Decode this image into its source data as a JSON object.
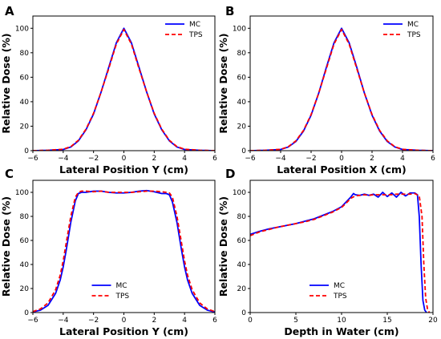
{
  "chart_data": [
    {
      "type": "line",
      "panel_label": "A",
      "xlabel": "Lateral Position Y (cm)",
      "ylabel": "Relative Dose (%)",
      "xlim": [
        -6,
        6
      ],
      "ylim": [
        0,
        110
      ],
      "xticks": [
        -6,
        -4,
        -2,
        0,
        2,
        4,
        6
      ],
      "yticks": [
        0,
        20,
        40,
        60,
        80,
        100
      ],
      "legend_position": "top-right",
      "series": [
        {
          "name": "MC",
          "color": "#0000ff",
          "dash": "solid",
          "x": [
            -6,
            -5,
            -4,
            -3.5,
            -3,
            -2.5,
            -2,
            -1.5,
            -1,
            -0.5,
            0,
            0.5,
            1,
            1.5,
            2,
            2.5,
            3,
            3.5,
            4,
            5,
            6
          ],
          "y": [
            0,
            0.3,
            1,
            3,
            8,
            17,
            30,
            48,
            68,
            88,
            100,
            88,
            68,
            48,
            30,
            17,
            8,
            3,
            1,
            0.3,
            0
          ]
        },
        {
          "name": "TPS",
          "color": "#ff0000",
          "dash": "dashed",
          "x": [
            -6,
            -5,
            -4,
            -3.5,
            -3,
            -2.5,
            -2,
            -1.5,
            -1,
            -0.5,
            0,
            0.5,
            1,
            1.5,
            2,
            2.5,
            3,
            3.5,
            4,
            5,
            6
          ],
          "y": [
            0,
            0.3,
            1.2,
            3.3,
            8.5,
            17.5,
            30.5,
            48,
            67,
            87,
            99,
            87,
            67,
            48,
            30.5,
            17.5,
            8.5,
            3.3,
            1.2,
            0.3,
            0
          ]
        }
      ]
    },
    {
      "type": "line",
      "panel_label": "B",
      "xlabel": "Lateral Position X (cm)",
      "ylabel": "Relative Dose (%)",
      "xlim": [
        -6,
        6
      ],
      "ylim": [
        0,
        110
      ],
      "xticks": [
        -6,
        -4,
        -2,
        0,
        2,
        4,
        6
      ],
      "yticks": [
        0,
        20,
        40,
        60,
        80,
        100
      ],
      "legend_position": "top-right",
      "series": [
        {
          "name": "MC",
          "color": "#0000ff",
          "dash": "solid",
          "x": [
            -6,
            -5,
            -4,
            -3.5,
            -3,
            -2.5,
            -2,
            -1.5,
            -1,
            -0.5,
            0,
            0.5,
            1,
            1.5,
            2,
            2.5,
            3,
            3.5,
            4,
            5,
            6
          ],
          "y": [
            0,
            0.3,
            1,
            3,
            7.5,
            16,
            29,
            47,
            68,
            88,
            100,
            88,
            68,
            47,
            29,
            16,
            7.5,
            3,
            1,
            0.3,
            0
          ]
        },
        {
          "name": "TPS",
          "color": "#ff0000",
          "dash": "dashed",
          "x": [
            -6,
            -5,
            -4,
            -3.5,
            -3,
            -2.5,
            -2,
            -1.5,
            -1,
            -0.5,
            0,
            0.5,
            1,
            1.5,
            2,
            2.5,
            3,
            3.5,
            4,
            5,
            6
          ],
          "y": [
            0,
            0.3,
            1.1,
            3.2,
            8,
            16.5,
            29.5,
            47,
            67,
            87,
            99,
            87,
            67,
            47,
            29.5,
            16.5,
            8,
            3.2,
            1.1,
            0.3,
            0
          ]
        }
      ]
    },
    {
      "type": "line",
      "panel_label": "C",
      "xlabel": "Lateral Position Y (cm)",
      "ylabel": "Relative Dose (%)",
      "xlim": [
        -6,
        6
      ],
      "ylim": [
        0,
        110
      ],
      "xticks": [
        -6,
        -4,
        -2,
        0,
        2,
        4,
        6
      ],
      "yticks": [
        0,
        20,
        40,
        60,
        80,
        100
      ],
      "legend_position": "bottom-center",
      "series": [
        {
          "name": "MC",
          "color": "#0000ff",
          "dash": "solid",
          "x": [
            -6,
            -5.5,
            -5,
            -4.5,
            -4.2,
            -4,
            -3.8,
            -3.5,
            -3.2,
            -3,
            -2.8,
            -2.5,
            -2,
            -1.5,
            -1,
            -0.5,
            0,
            0.5,
            1,
            1.5,
            2,
            2.5,
            2.8,
            3,
            3.2,
            3.5,
            3.8,
            4,
            4.2,
            4.5,
            5,
            5.5,
            6
          ],
          "y": [
            0.5,
            2,
            6,
            16,
            27,
            38,
            52,
            75,
            93,
            99,
            100,
            100,
            101,
            101,
            100,
            99.5,
            99.5,
            100,
            101,
            101.5,
            100.5,
            99,
            99,
            98,
            92,
            75,
            52,
            38,
            27,
            16,
            6,
            2,
            0.5
          ]
        },
        {
          "name": "TPS",
          "color": "#ff0000",
          "dash": "dashed",
          "x": [
            -6,
            -5.5,
            -5,
            -4.5,
            -4.2,
            -4,
            -3.8,
            -3.5,
            -3.2,
            -3,
            -2.8,
            -2.5,
            -2,
            -1.5,
            -1,
            -0.5,
            0,
            0.5,
            1,
            1.5,
            2,
            2.5,
            2.8,
            3,
            3.2,
            3.5,
            3.8,
            4,
            4.2,
            4.5,
            5,
            5.5,
            6
          ],
          "y": [
            0.8,
            3,
            8,
            19,
            31,
            43,
            58,
            80,
            96,
            100,
            101,
            101,
            100.5,
            101,
            100,
            100,
            100,
            100,
            100.5,
            101,
            101,
            100.5,
            100,
            99.5,
            96,
            80,
            58,
            43,
            31,
            19,
            8,
            3,
            0.8
          ]
        }
      ]
    },
    {
      "type": "line",
      "panel_label": "D",
      "xlabel": "Depth in Water (cm)",
      "ylabel": "Relative Dose (%)",
      "xlim": [
        0,
        20
      ],
      "ylim": [
        0,
        110
      ],
      "xticks": [
        0,
        5,
        10,
        15,
        20
      ],
      "yticks": [
        0,
        20,
        40,
        60,
        80,
        100
      ],
      "legend_position": "bottom-center",
      "series": [
        {
          "name": "MC",
          "color": "#0000ff",
          "dash": "solid",
          "x": [
            0,
            1,
            2,
            3,
            4,
            5,
            6,
            7,
            8,
            9,
            10,
            10.5,
            11,
            11.3,
            11.5,
            12,
            12.5,
            13,
            13.5,
            14,
            14.5,
            15,
            15.5,
            16,
            16.5,
            17,
            17.5,
            18,
            18.3,
            18.5,
            18.7,
            18.9,
            19.1,
            19.3
          ],
          "y": [
            65,
            67.5,
            69.5,
            71,
            72.5,
            74,
            76,
            78,
            81,
            84,
            88,
            92,
            96,
            99,
            98,
            97.5,
            98.5,
            97.5,
            98.5,
            96,
            100,
            96.5,
            99.5,
            96,
            100,
            97,
            99.5,
            99.5,
            98,
            80,
            40,
            10,
            2,
            0
          ]
        },
        {
          "name": "TPS",
          "color": "#ff0000",
          "dash": "dashed",
          "x": [
            0,
            1,
            2,
            3,
            4,
            5,
            6,
            7,
            8,
            9,
            10,
            10.5,
            11,
            11.5,
            12,
            12.5,
            13,
            13.5,
            14,
            14.5,
            15,
            15.5,
            16,
            16.5,
            17,
            17.5,
            18,
            18.5,
            18.8,
            19,
            19.2,
            19.4,
            19.6
          ],
          "y": [
            64,
            67,
            69,
            71,
            72.5,
            74,
            75.5,
            77.5,
            80.5,
            83.5,
            87.5,
            91,
            95,
            97,
            97.5,
            98,
            97.5,
            98,
            98,
            98,
            98,
            98,
            98.5,
            98.5,
            98.5,
            98.5,
            99,
            97,
            80,
            40,
            12,
            3,
            0
          ]
        }
      ]
    }
  ]
}
